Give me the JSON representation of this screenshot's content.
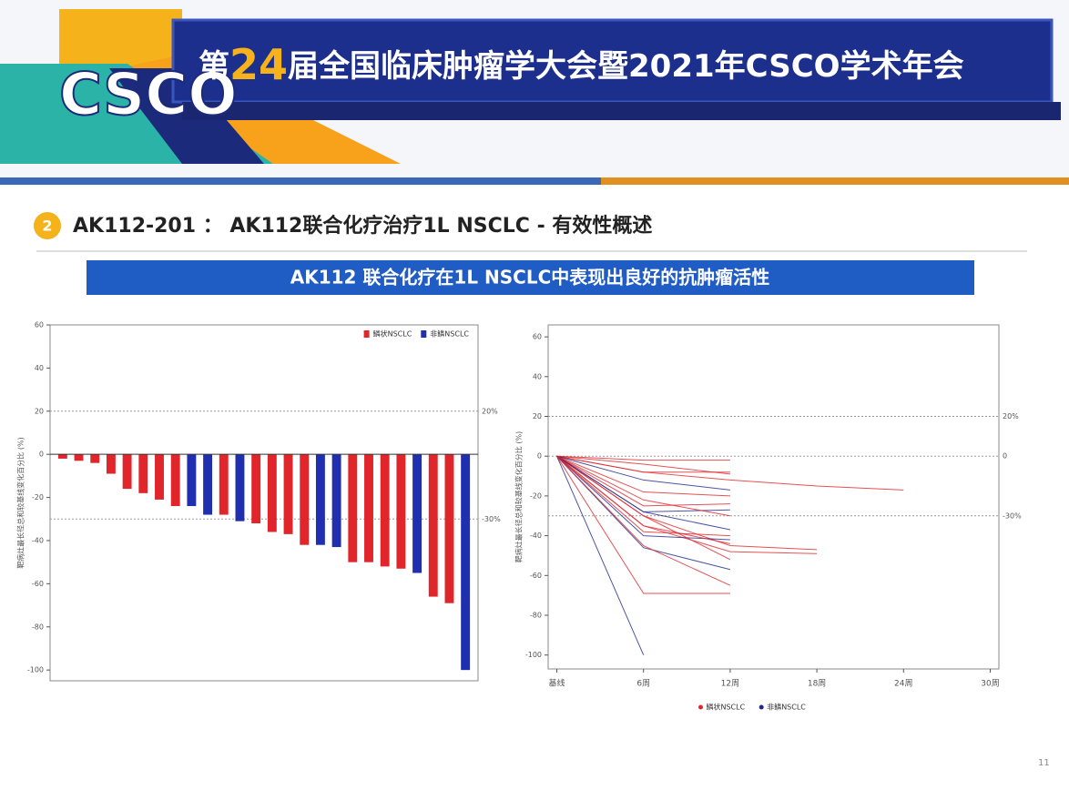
{
  "header": {
    "logo": "CSCO",
    "title_prefix": "第",
    "title_number": "24",
    "title_suffix": "届全国临床肿瘤学大会暨2021年CSCO学术年会"
  },
  "section": {
    "number": "2",
    "title": "AK112-201 ： AK112联合化疗治疗1L NSCLC - 有效性概述"
  },
  "banner": "AK112 联合化疗在1L NSCLC中表现出良好的抗肿瘤活性",
  "page_number": "11",
  "chart_data": [
    {
      "type": "bar",
      "y_label": "靶病灶最长径总和较基线变化百分比 (%)",
      "categories": [
        null,
        null,
        null,
        null,
        null,
        null,
        null,
        null,
        null,
        null,
        null,
        null,
        null,
        null,
        null,
        null,
        null,
        null,
        null,
        null,
        null,
        null,
        null,
        null,
        null,
        null
      ],
      "series": [
        {
          "name": "鳞状NSCLC",
          "color": "#e0262b",
          "values": [
            -2,
            -3,
            -4,
            -9,
            -16,
            -18,
            -21,
            -24,
            null,
            null,
            -28,
            null,
            -32,
            -36,
            -37,
            -42,
            null,
            null,
            -50,
            -50,
            -52,
            -53,
            null,
            -66,
            -69,
            null
          ]
        },
        {
          "name": "非鳞NSCLC",
          "color": "#1f2fb0",
          "values": [
            null,
            null,
            null,
            null,
            null,
            null,
            null,
            null,
            -24,
            -28,
            null,
            -31,
            null,
            null,
            null,
            null,
            -42,
            -43,
            null,
            null,
            null,
            null,
            -55,
            null,
            null,
            -100
          ]
        }
      ],
      "ylim": [
        -105,
        60
      ],
      "yticks": [
        60,
        40,
        20,
        0,
        -20,
        -40,
        -60,
        -80,
        -100
      ],
      "reference_lines": [
        {
          "value": 20,
          "label": "20%"
        },
        {
          "value": -30,
          "label": "-30%"
        }
      ],
      "legend": "top-right"
    },
    {
      "type": "line",
      "y_label": "靶病灶最长径总和较基线变化百分比 (%)",
      "xlim": [
        -0.6,
        30.6
      ],
      "ylim": [
        -107,
        66
      ],
      "xticks": [
        {
          "value": 0,
          "label": "基线"
        },
        {
          "value": 6,
          "label": "6周"
        },
        {
          "value": 12,
          "label": "12周"
        },
        {
          "value": 18,
          "label": "18周"
        },
        {
          "value": 24,
          "label": "24周"
        },
        {
          "value": 30,
          "label": "30周"
        }
      ],
      "yticks": [
        60,
        40,
        20,
        0,
        -20,
        -40,
        -60,
        -80,
        -100
      ],
      "reference_lines": [
        {
          "value": 20,
          "label": "20%"
        },
        {
          "value": 0,
          "label": "0"
        },
        {
          "value": -30,
          "label": "-30%"
        }
      ],
      "legend_entries": [
        {
          "name": "鳞状NSCLC",
          "color": "#e0262b"
        },
        {
          "name": "非鳞NSCLC",
          "color": "#1f2a8a"
        }
      ],
      "lines": [
        {
          "color": "#1f2a8a",
          "x": [
            0,
            6
          ],
          "values": [
            0,
            -100
          ]
        },
        {
          "color": "#e0262b",
          "x": [
            0,
            6,
            12
          ],
          "values": [
            0,
            -69,
            -69
          ]
        },
        {
          "color": "#e0262b",
          "x": [
            0,
            6,
            12,
            18,
            24
          ],
          "values": [
            0,
            -8,
            -12,
            -15,
            -17
          ]
        },
        {
          "color": "#e0262b",
          "x": [
            0,
            6,
            12,
            18
          ],
          "values": [
            0,
            -30,
            -45,
            -47
          ]
        },
        {
          "color": "#e0262b",
          "x": [
            0,
            6,
            12,
            18
          ],
          "values": [
            0,
            -35,
            -48,
            -49
          ]
        },
        {
          "color": "#e0262b",
          "x": [
            0,
            6,
            12
          ],
          "values": [
            0,
            -2,
            -2
          ]
        },
        {
          "color": "#e0262b",
          "x": [
            0,
            6,
            12
          ],
          "values": [
            0,
            -8,
            -8
          ]
        },
        {
          "color": "#1f2a8a",
          "x": [
            0,
            6,
            12
          ],
          "values": [
            0,
            -28,
            -37
          ]
        },
        {
          "color": "#1f2a8a",
          "x": [
            0,
            6,
            12
          ],
          "values": [
            0,
            -40,
            -42
          ]
        },
        {
          "color": "#1f2a8a",
          "x": [
            0,
            6,
            12
          ],
          "values": [
            0,
            -46,
            -57
          ]
        },
        {
          "color": "#e0262b",
          "x": [
            0,
            6,
            12
          ],
          "values": [
            0,
            -30,
            -52
          ]
        },
        {
          "color": "#e0262b",
          "x": [
            0,
            6,
            12
          ],
          "values": [
            0,
            -18,
            -20
          ]
        },
        {
          "color": "#e0262b",
          "x": [
            0,
            6,
            12
          ],
          "values": [
            0,
            -25,
            -24
          ]
        },
        {
          "color": "#1f2a8a",
          "x": [
            0,
            6,
            12
          ],
          "values": [
            0,
            -12,
            -17
          ]
        },
        {
          "color": "#e0262b",
          "x": [
            0,
            6,
            12
          ],
          "values": [
            0,
            -38,
            -40
          ]
        },
        {
          "color": "#e0262b",
          "x": [
            0,
            6,
            12
          ],
          "values": [
            0,
            -35,
            -44
          ]
        },
        {
          "color": "#1f2a8a",
          "x": [
            0,
            6,
            12
          ],
          "values": [
            0,
            -28,
            -27
          ]
        },
        {
          "color": "#e0262b",
          "x": [
            0,
            6,
            12
          ],
          "values": [
            0,
            -22,
            -30
          ]
        },
        {
          "color": "#e0262b",
          "x": [
            0,
            6,
            12
          ],
          "values": [
            0,
            -45,
            -65
          ]
        },
        {
          "color": "#e0262b",
          "x": [
            0,
            6,
            12
          ],
          "values": [
            0,
            -4,
            -9
          ]
        }
      ]
    }
  ]
}
